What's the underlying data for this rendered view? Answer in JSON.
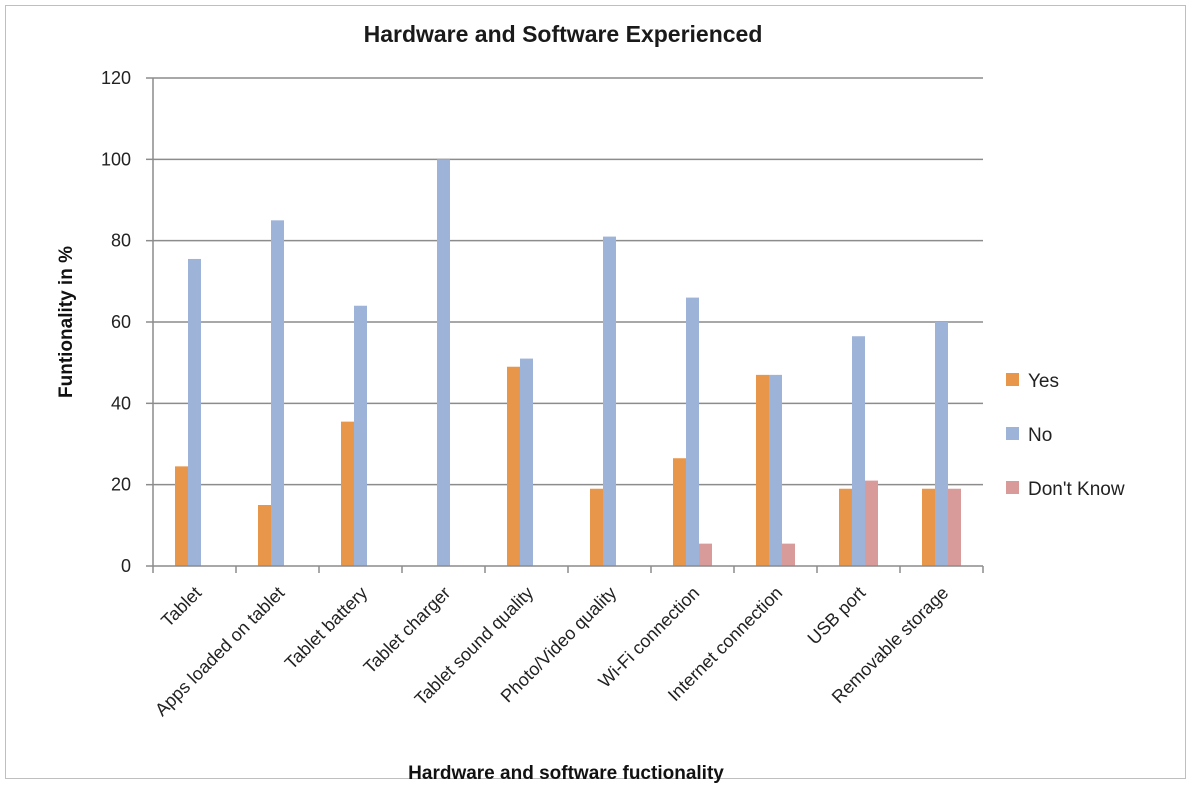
{
  "chart_data": {
    "type": "bar",
    "title": "Hardware and Software Experienced",
    "xlabel": "Hardware and software fuctionality",
    "ylabel": "Funtionality in %",
    "ylim": [
      0,
      120
    ],
    "yticks": [
      0,
      20,
      40,
      60,
      80,
      100,
      120
    ],
    "grid": true,
    "legend_position": "right",
    "categories": [
      "Tablet",
      "Apps loaded on tablet",
      "Tablet battery",
      "Tablet charger",
      "Tablet  sound quality",
      "Photo/Video quality",
      "Wi-Fi connection",
      "Internet connection",
      "USB port",
      "Removable storage"
    ],
    "series": [
      {
        "name": "Yes",
        "color": "#e8964a",
        "values": [
          24.5,
          15,
          35.5,
          0,
          49,
          19,
          26.5,
          47,
          19,
          19
        ]
      },
      {
        "name": "No",
        "color": "#9eb3d8",
        "values": [
          75.5,
          85,
          64,
          100,
          51,
          81,
          66,
          47,
          56.5,
          60
        ]
      },
      {
        "name": "Don't Know",
        "color": "#d99a9a",
        "values": [
          0,
          0,
          0,
          0,
          0,
          0,
          5.5,
          5.5,
          21,
          19
        ]
      }
    ]
  }
}
